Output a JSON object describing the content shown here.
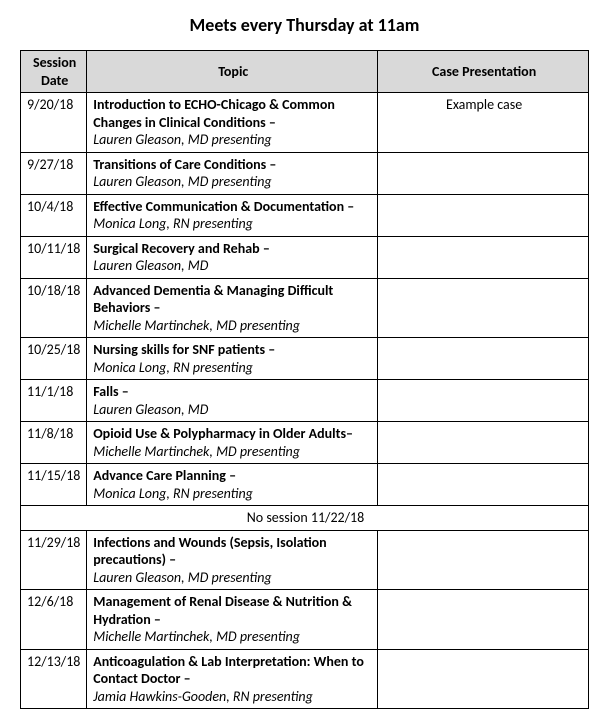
{
  "pageTitle": "Meets every Thursday at 11am",
  "headers": {
    "date": "Session Date",
    "topic": "Topic",
    "case": "Case Presentation"
  },
  "rows": [
    {
      "date": "9/20/18",
      "topic": "Introduction to ECHO-Chicago & Common Changes in Clinical Conditions –",
      "presenter": "Lauren Gleason, MD presenting",
      "case": "Example case"
    },
    {
      "date": "9/27/18",
      "topic": "Transitions of Care Conditions –",
      "presenter": "Lauren Gleason, MD presenting",
      "case": ""
    },
    {
      "date": "10/4/18",
      "topic": "Effective Communication & Documentation –",
      "presenter": "Monica Long, RN presenting",
      "case": ""
    },
    {
      "date": "10/11/18",
      "topic": "Surgical Recovery and Rehab –",
      "presenter": "Lauren Gleason, MD",
      "case": ""
    },
    {
      "date": "10/18/18",
      "topic": "Advanced Dementia & Managing Difficult Behaviors –",
      "presenter": "Michelle Martinchek, MD presenting",
      "case": ""
    },
    {
      "date": "10/25/18",
      "topic": "Nursing skills for SNF patients –",
      "presenter": "Monica Long, RN presenting",
      "case": ""
    },
    {
      "date": "11/1/18",
      "topic": "Falls –",
      "presenter": "Lauren Gleason, MD",
      "case": ""
    },
    {
      "date": "11/8/18",
      "topic": "Opioid Use & Polypharmacy in Older Adults–",
      "presenter": "Michelle Martinchek, MD presenting",
      "case": ""
    },
    {
      "date": "11/15/18",
      "topic": "Advance Care Planning –",
      "presenter": "Monica Long, RN presenting",
      "case": ""
    },
    {
      "noSession": true,
      "text": "No session 11/22/18"
    },
    {
      "date": "11/29/18",
      "topic": "Infections and Wounds (Sepsis, Isolation precautions) –",
      "presenter": "Lauren Gleason, MD presenting",
      "case": ""
    },
    {
      "date": "12/6/18",
      "topic": "Management of Renal Disease & Nutrition & Hydration –",
      "presenter": "Michelle Martinchek, MD presenting",
      "case": ""
    },
    {
      "date": "12/13/18",
      "topic": "Anticoagulation & Lab Interpretation: When to Contact Doctor –",
      "presenter": "Jamia Hawkins-Gooden, RN presenting",
      "case": ""
    }
  ],
  "style": {
    "headerBg": "#d9d9d9",
    "borderColor": "#000000",
    "fontFamily": "Calibri, Arial, sans-serif",
    "titleFontSize": 18,
    "cellFontSize": 14
  }
}
